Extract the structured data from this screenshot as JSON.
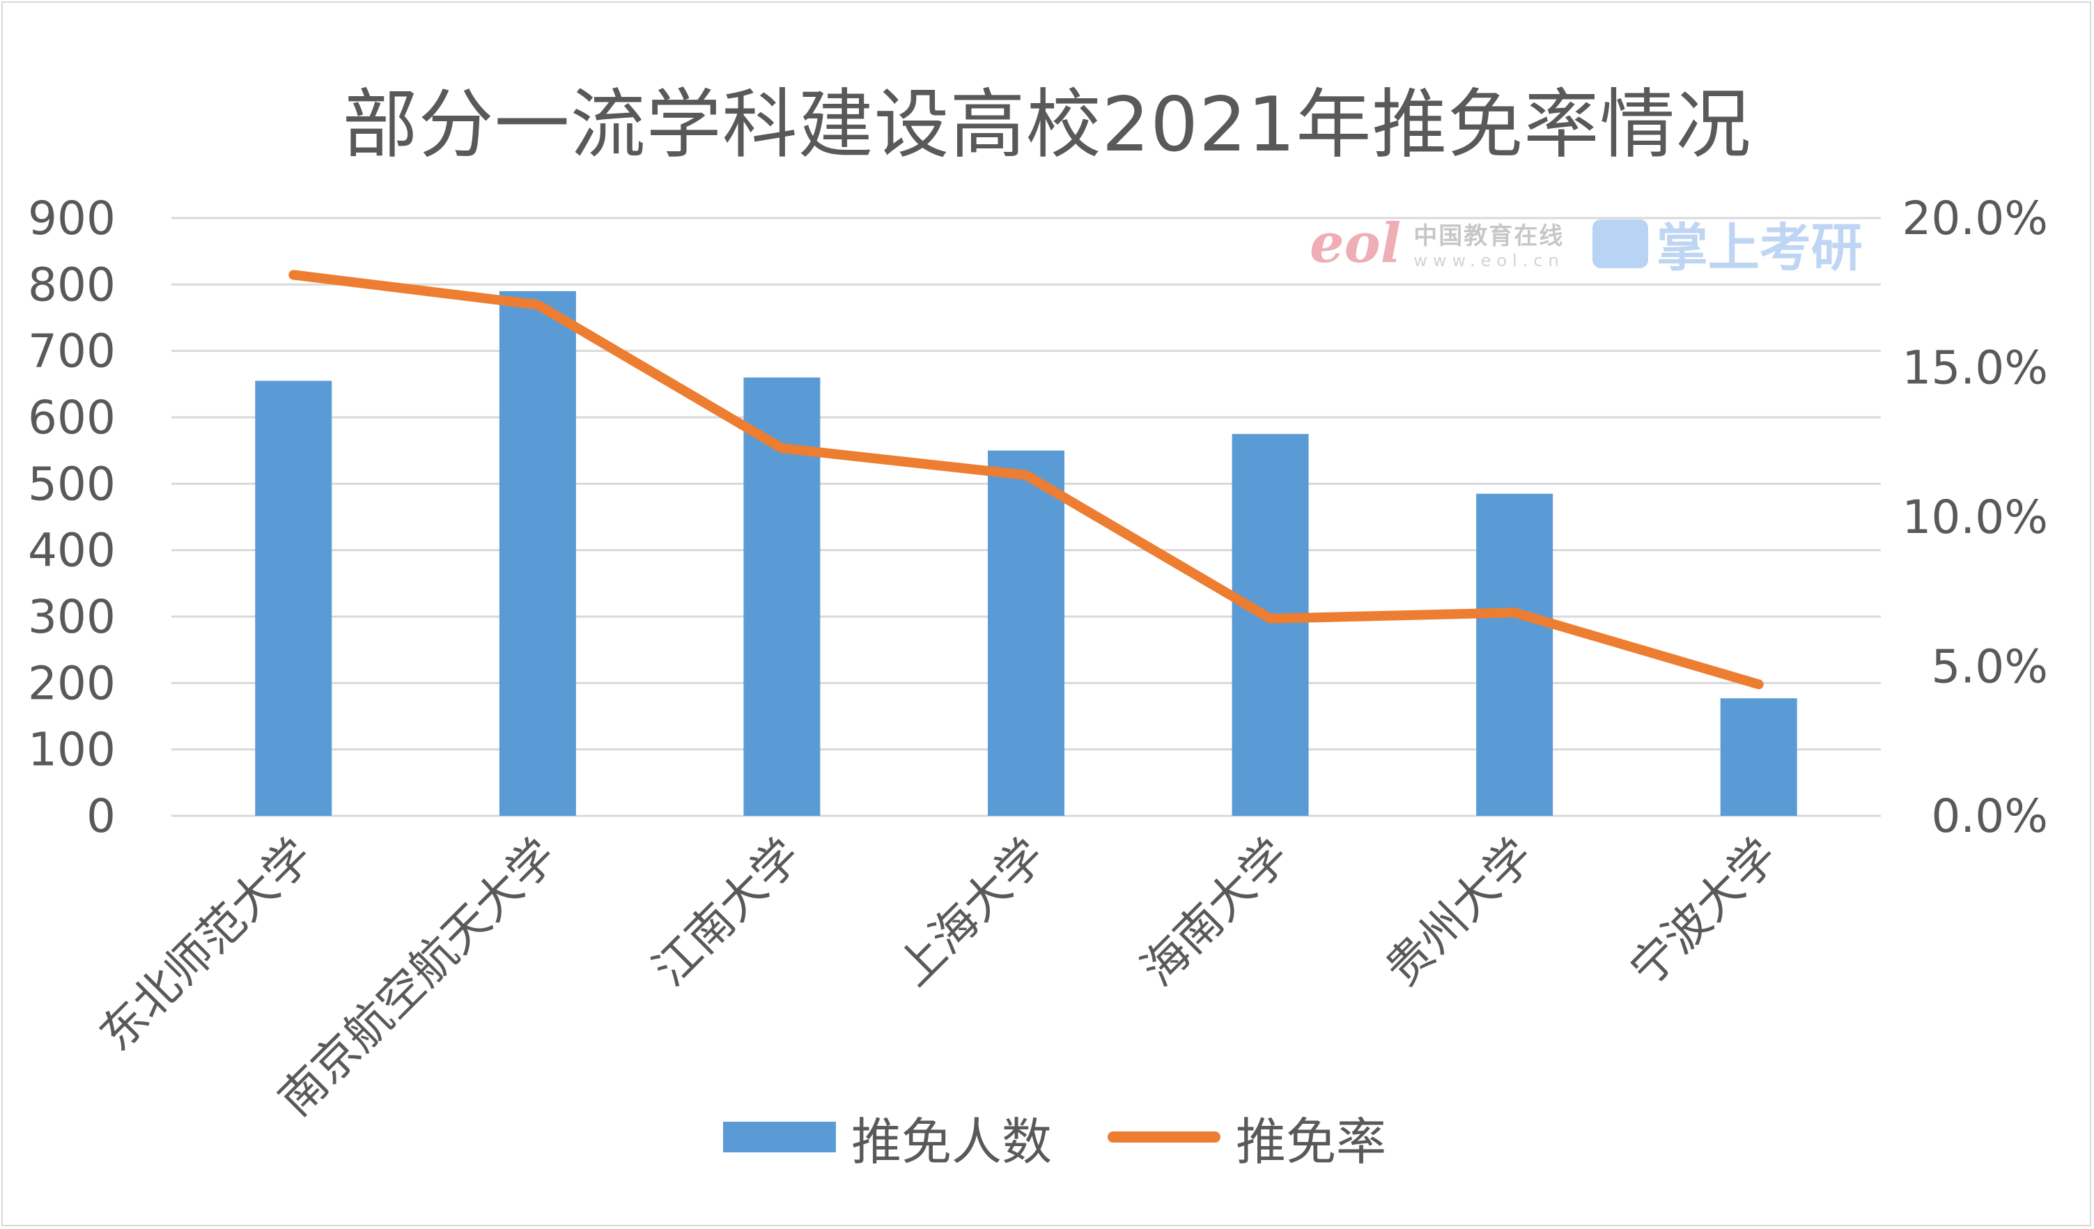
{
  "chart_data": {
    "type": "bar",
    "title": "部分一流学科建设高校2021年推免率情况",
    "categories": [
      "东北师范大学",
      "南京航空航天大学",
      "江南大学",
      "上海大学",
      "海南大学",
      "贵州大学",
      "宁波大学"
    ],
    "series": [
      {
        "name": "推免人数",
        "type": "bar",
        "axis": "left",
        "color": "#5b9bd5",
        "values": [
          655,
          790,
          660,
          550,
          575,
          485,
          177
        ]
      },
      {
        "name": "推免率",
        "type": "line",
        "axis": "right",
        "color": "#ed7d31",
        "values": [
          0.181,
          0.171,
          0.123,
          0.114,
          0.066,
          0.068,
          0.044
        ]
      }
    ],
    "y_left": {
      "min": 0,
      "max": 900,
      "step": 100,
      "ticks": [
        "0",
        "100",
        "200",
        "300",
        "400",
        "500",
        "600",
        "700",
        "800",
        "900"
      ]
    },
    "y_right": {
      "min": 0,
      "max": 0.2,
      "step": 0.05,
      "ticks": [
        "0.0%",
        "5.0%",
        "10.0%",
        "15.0%",
        "20.0%"
      ]
    },
    "grid": true,
    "legend_position": "bottom"
  },
  "watermark": {
    "eol": "eol",
    "site_cn": "中国教育在线",
    "site_url": "www.eol.cn",
    "brand": "掌上考研"
  }
}
